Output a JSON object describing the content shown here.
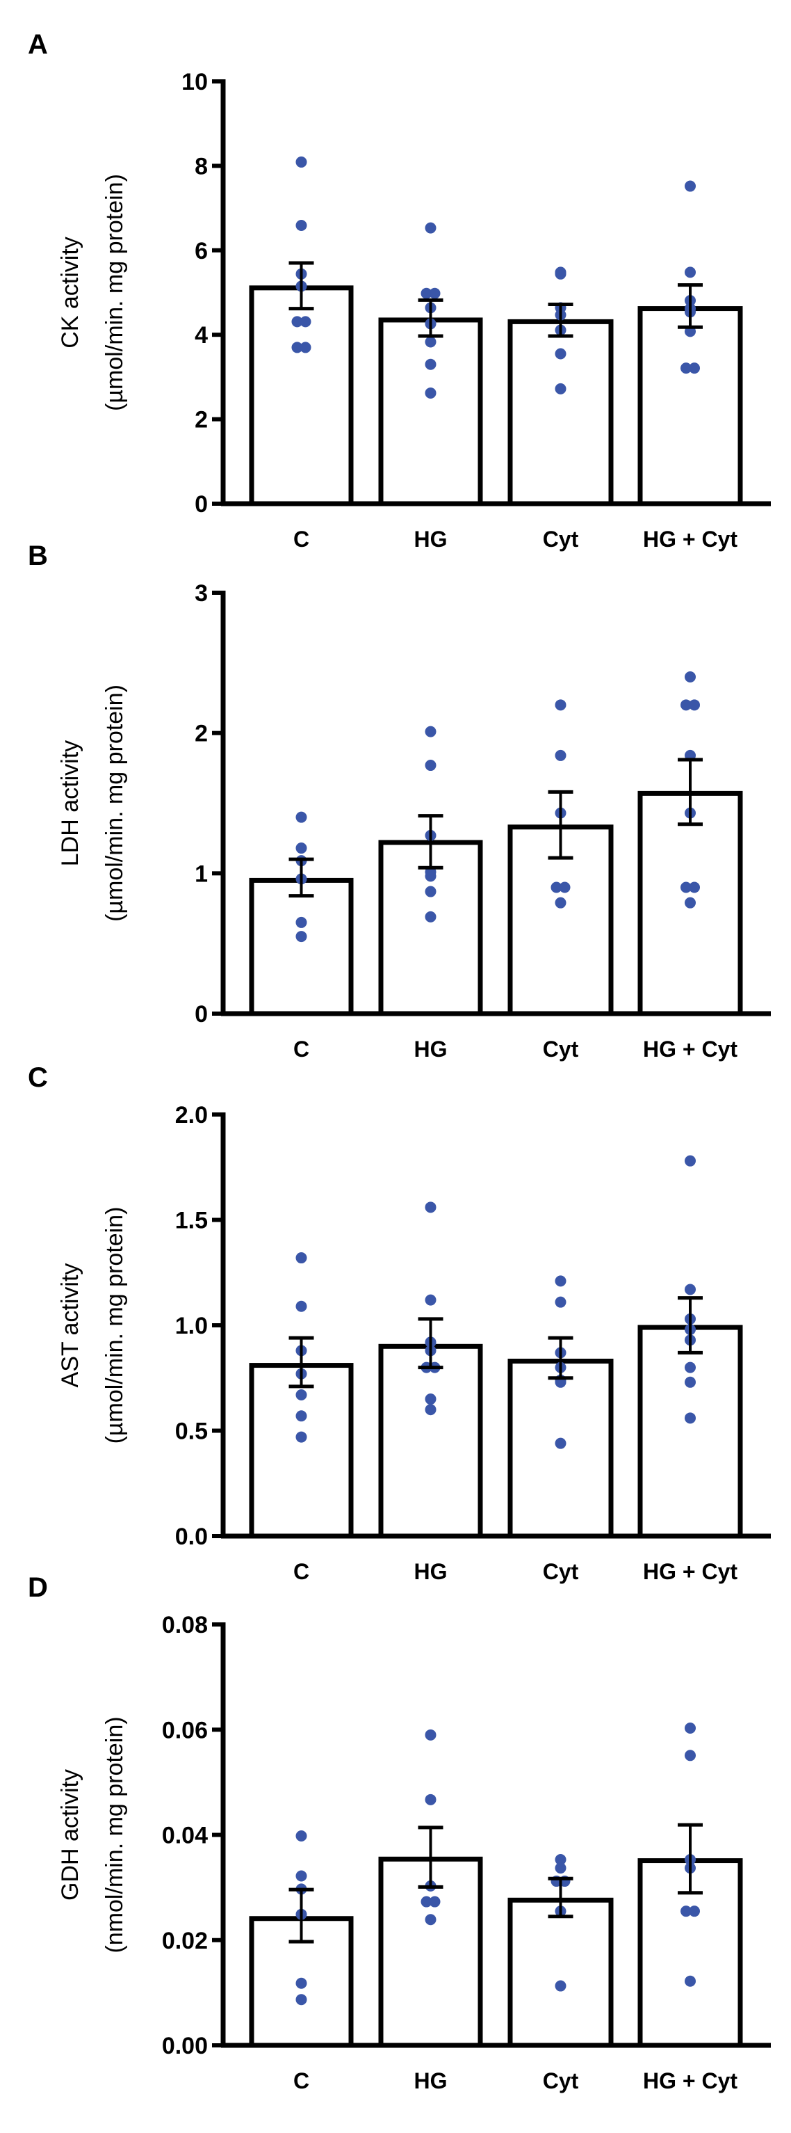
{
  "dot_color": "#3a56a8",
  "chart_data": [
    {
      "type": "bar",
      "panel": "A",
      "ylabel": [
        "CK activity",
        "(µmol/min. mg protein)"
      ],
      "ylim": [
        0,
        10
      ],
      "yticks": [
        "0",
        "2",
        "4",
        "6",
        "8",
        "10"
      ],
      "ytick_values": [
        0,
        2,
        4,
        6,
        8,
        10
      ],
      "categories": [
        "C",
        "HG",
        "Cyt",
        "HG + Cyt"
      ],
      "values": [
        5.11,
        4.35,
        4.31,
        4.62
      ],
      "sem_upper": [
        5.7,
        4.82,
        4.72,
        5.18
      ],
      "sem_lower": [
        4.62,
        3.97,
        3.97,
        4.18
      ],
      "points": [
        [
          8.09,
          6.59,
          5.44,
          5.15,
          4.31,
          4.31,
          3.7,
          3.7
        ],
        [
          6.53,
          4.98,
          4.98,
          4.64,
          4.26,
          3.83,
          3.3,
          2.62
        ],
        [
          5.48,
          5.44,
          4.64,
          4.47,
          4.11,
          3.55,
          2.72
        ],
        [
          7.52,
          5.48,
          4.81,
          4.62,
          4.54,
          4.08,
          3.21,
          3.21
        ]
      ]
    },
    {
      "type": "bar",
      "panel": "B",
      "ylabel": [
        "LDH activity",
        "(µmol/min. mg protein)"
      ],
      "ylim": [
        0,
        3
      ],
      "yticks": [
        "0",
        "1",
        "2",
        "3"
      ],
      "ytick_values": [
        0,
        1,
        2,
        3
      ],
      "categories": [
        "C",
        "HG",
        "Cyt",
        "HG + Cyt"
      ],
      "values": [
        0.95,
        1.22,
        1.33,
        1.57
      ],
      "sem_upper": [
        1.1,
        1.41,
        1.58,
        1.81
      ],
      "sem_lower": [
        0.84,
        1.04,
        1.11,
        1.35
      ],
      "points": [
        [
          1.4,
          1.18,
          1.09,
          0.96,
          0.65,
          0.55
        ],
        [
          2.01,
          1.77,
          1.27,
          1.01,
          0.98,
          0.87,
          0.69
        ],
        [
          2.2,
          1.84,
          1.43,
          0.9,
          0.9,
          0.79
        ],
        [
          2.4,
          2.2,
          2.2,
          1.84,
          1.43,
          0.9,
          0.9,
          0.79
        ]
      ]
    },
    {
      "type": "bar",
      "panel": "C",
      "ylabel": [
        "AST activity",
        "(µmol/min. mg protein)"
      ],
      "ylim": [
        0,
        2
      ],
      "yticks": [
        "0.0",
        "0.5",
        "1.0",
        "1.5",
        "2.0"
      ],
      "ytick_values": [
        0,
        0.5,
        1.0,
        1.5,
        2.0
      ],
      "categories": [
        "C",
        "HG",
        "Cyt",
        "HG + Cyt"
      ],
      "values": [
        0.81,
        0.9,
        0.83,
        0.99
      ],
      "sem_upper": [
        0.94,
        1.03,
        0.94,
        1.13
      ],
      "sem_lower": [
        0.71,
        0.8,
        0.75,
        0.87
      ],
      "points": [
        [
          1.32,
          1.09,
          0.88,
          0.77,
          0.67,
          0.57,
          0.47
        ],
        [
          1.56,
          1.12,
          0.92,
          0.88,
          0.8,
          0.8,
          0.65,
          0.6
        ],
        [
          1.21,
          1.11,
          0.87,
          0.8,
          0.74,
          0.73,
          0.44
        ],
        [
          1.78,
          1.17,
          1.03,
          0.98,
          0.93,
          0.8,
          0.73,
          0.56
        ]
      ]
    },
    {
      "type": "bar",
      "panel": "D",
      "ylabel": [
        "GDH activity",
        "(nmol/min. mg protein)"
      ],
      "ylim": [
        0,
        0.08
      ],
      "yticks": [
        "0.00",
        "0.02",
        "0.04",
        "0.06",
        "0.08"
      ],
      "ytick_values": [
        0,
        0.02,
        0.04,
        0.06,
        0.08
      ],
      "categories": [
        "C",
        "HG",
        "Cyt",
        "HG + Cyt"
      ],
      "values": [
        0.0241,
        0.0354,
        0.0276,
        0.0351
      ],
      "sem_upper": [
        0.0296,
        0.0414,
        0.0317,
        0.0419
      ],
      "sem_lower": [
        0.0197,
        0.0301,
        0.0245,
        0.029
      ],
      "points": [
        [
          0.0398,
          0.0322,
          0.0297,
          0.0249,
          0.0118,
          0.0087
        ],
        [
          0.059,
          0.0467,
          0.0303,
          0.0273,
          0.0273,
          0.0239
        ],
        [
          0.0353,
          0.0337,
          0.0312,
          0.0312,
          0.0255,
          0.0113
        ],
        [
          0.0603,
          0.0551,
          0.0353,
          0.0337,
          0.0255,
          0.0255,
          0.0122
        ]
      ]
    }
  ]
}
